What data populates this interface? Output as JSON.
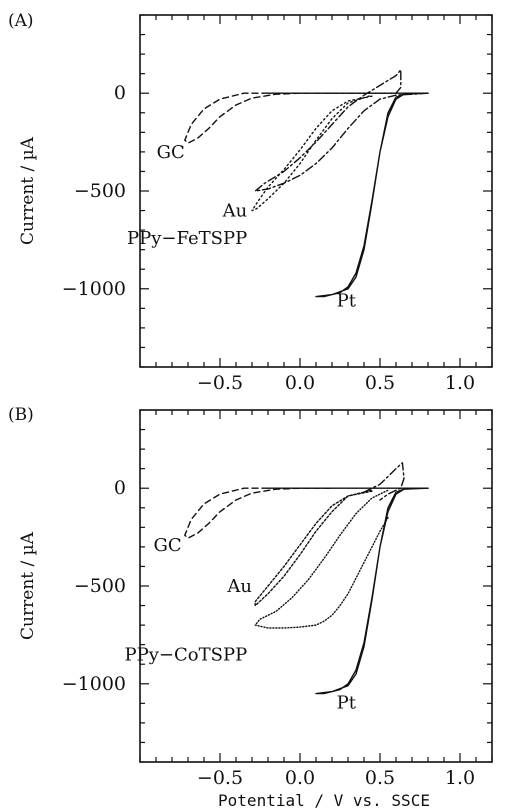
{
  "chart_data": [
    {
      "type": "line",
      "panel_label": "(A)",
      "title": "",
      "xlabel": "",
      "ylabel": "Current / µA",
      "xlim": [
        -1.0,
        1.2
      ],
      "ylim": [
        -1400,
        400
      ],
      "x_ticks": [
        -0.5,
        0.0,
        0.5,
        1.0
      ],
      "x_tick_labels": [
        "−0.5",
        "0.0",
        "0.5",
        "1.0"
      ],
      "y_ticks": [
        0,
        -500,
        -1000
      ],
      "y_tick_labels": [
        "0",
        "−500",
        "−1000"
      ],
      "grid": false,
      "series": [
        {
          "label": "GC",
          "dash": "6 4",
          "label_at": [
            -0.72,
            -300
          ],
          "x": [
            -0.2,
            -0.35,
            -0.5,
            -0.6,
            -0.68,
            -0.72,
            -0.7,
            -0.64,
            -0.57,
            -0.5,
            -0.4,
            -0.3,
            -0.15,
            0.0,
            0.2
          ],
          "y": [
            0,
            0,
            -30,
            -80,
            -160,
            -240,
            -255,
            -230,
            -180,
            -120,
            -60,
            -25,
            -5,
            0,
            0
          ]
        },
        {
          "label": "Au",
          "dash": "1.5 3",
          "label_at": [
            -0.33,
            -600
          ],
          "x": [
            0.45,
            0.3,
            0.2,
            0.1,
            0.0,
            -0.1,
            -0.2,
            -0.26,
            -0.3,
            -0.27,
            -0.2,
            -0.1,
            0.0,
            0.1,
            0.2,
            0.3,
            0.45
          ],
          "y": [
            -15,
            -40,
            -90,
            -180,
            -290,
            -390,
            -480,
            -550,
            -600,
            -590,
            -540,
            -460,
            -360,
            -240,
            -130,
            -50,
            -10
          ]
        },
        {
          "label": "PPy−FeTSPP",
          "dash": "8 3 2 3",
          "label_at": [
            -0.33,
            -740
          ],
          "x": [
            0.8,
            0.6,
            0.5,
            0.4,
            0.3,
            0.2,
            0.1,
            0.0,
            -0.1,
            -0.2,
            -0.28,
            -0.22,
            -0.1,
            0.0,
            0.1,
            0.2,
            0.3,
            0.4,
            0.5,
            0.6,
            0.63,
            0.63,
            0.6,
            0.5,
            0.4,
            0.3,
            0.2
          ],
          "y": [
            0,
            -10,
            -30,
            -90,
            -180,
            -280,
            -360,
            -420,
            -460,
            -490,
            -500,
            -460,
            -400,
            -330,
            -250,
            -160,
            -70,
            -10,
            40,
            90,
            120,
            30,
            0,
            0,
            0,
            0,
            0
          ]
        },
        {
          "label": "Pt",
          "dash": "",
          "label_at": [
            0.35,
            -1060
          ],
          "x": [
            0.8,
            0.65,
            0.6,
            0.55,
            0.5,
            0.45,
            0.4,
            0.35,
            0.3,
            0.25,
            0.2,
            0.15,
            0.1,
            0.2,
            0.3,
            0.35,
            0.4,
            0.45,
            0.5,
            0.55,
            0.6,
            0.65,
            0.8
          ],
          "y": [
            0,
            -5,
            -30,
            -120,
            -300,
            -550,
            -780,
            -920,
            -990,
            -1020,
            -1030,
            -1040,
            -1040,
            -1030,
            -1000,
            -940,
            -800,
            -560,
            -300,
            -100,
            -20,
            -5,
            0
          ]
        },
        {
          "label": "",
          "dash": "",
          "label_at": null,
          "x": [
            -0.2,
            0.0,
            0.2,
            0.4,
            0.6,
            0.8
          ],
          "y": [
            0,
            0,
            0,
            0,
            0,
            0
          ]
        }
      ]
    },
    {
      "type": "line",
      "panel_label": "(B)",
      "title": "",
      "xlabel": "Potential / V vs. SSCE",
      "ylabel": "Current / µA",
      "xlim": [
        -1.0,
        1.2
      ],
      "ylim": [
        -1400,
        400
      ],
      "x_ticks": [
        -0.5,
        0.0,
        0.5,
        1.0
      ],
      "x_tick_labels": [
        "−0.5",
        "0.0",
        "0.5",
        "1.0"
      ],
      "y_ticks": [
        0,
        -500,
        -1000
      ],
      "y_tick_labels": [
        "0",
        "−500",
        "−1000"
      ],
      "grid": false,
      "series": [
        {
          "label": "GC",
          "dash": "6 4",
          "label_at": [
            -0.74,
            -290
          ],
          "x": [
            -0.2,
            -0.35,
            -0.5,
            -0.6,
            -0.68,
            -0.72,
            -0.7,
            -0.64,
            -0.57,
            -0.5,
            -0.4,
            -0.3,
            -0.15,
            0.0,
            0.2
          ],
          "y": [
            0,
            0,
            -30,
            -80,
            -160,
            -240,
            -255,
            -230,
            -180,
            -120,
            -60,
            -25,
            -5,
            0,
            0
          ]
        },
        {
          "label": "Au",
          "dash": "2 2",
          "label_at": [
            -0.3,
            -500
          ],
          "x": [
            0.45,
            0.3,
            0.2,
            0.1,
            0.0,
            -0.1,
            -0.2,
            -0.28,
            -0.28,
            -0.2,
            -0.1,
            0.0,
            0.1,
            0.2,
            0.3,
            0.45
          ],
          "y": [
            -15,
            -40,
            -90,
            -180,
            -290,
            -400,
            -500,
            -580,
            -600,
            -540,
            -450,
            -340,
            -220,
            -120,
            -40,
            -10
          ]
        },
        {
          "label": "PPy−CoTSPP",
          "dash": "1 2",
          "label_at": [
            -0.33,
            -850
          ],
          "x": [
            0.55,
            0.5,
            0.45,
            0.4,
            0.35,
            0.3,
            0.25,
            0.2,
            0.15,
            0.1,
            0.0,
            -0.1,
            -0.2,
            -0.28,
            -0.25,
            -0.15,
            -0.05,
            0.05,
            0.15,
            0.25,
            0.35,
            0.45,
            0.55
          ],
          "y": [
            -150,
            -220,
            -300,
            -380,
            -460,
            -540,
            -600,
            -650,
            -680,
            -700,
            -710,
            -715,
            -715,
            -700,
            -670,
            -630,
            -560,
            -470,
            -360,
            -240,
            -130,
            -50,
            -10
          ]
        },
        {
          "label": "Pt",
          "dash": "",
          "label_at": [
            0.35,
            -1095
          ],
          "x": [
            0.8,
            0.65,
            0.6,
            0.55,
            0.5,
            0.45,
            0.4,
            0.35,
            0.3,
            0.25,
            0.2,
            0.15,
            0.1,
            0.2,
            0.3,
            0.35,
            0.4,
            0.45,
            0.5,
            0.55,
            0.6,
            0.65,
            0.8
          ],
          "y": [
            0,
            -5,
            -30,
            -120,
            -300,
            -560,
            -790,
            -930,
            -1000,
            -1030,
            -1040,
            -1050,
            -1050,
            -1040,
            -1010,
            -950,
            -810,
            -570,
            -300,
            -100,
            -20,
            -5,
            0
          ]
        },
        {
          "label": "",
          "dash": "8 3 2 3",
          "label_at": null,
          "x": [
            0.4,
            0.5,
            0.55,
            0.6,
            0.64,
            0.65,
            0.63,
            0.6,
            0.55,
            0.5
          ],
          "y": [
            -20,
            20,
            60,
            100,
            130,
            50,
            0,
            -10,
            -30,
            -60
          ]
        },
        {
          "label": "",
          "dash": "",
          "label_at": null,
          "x": [
            -0.2,
            0.0,
            0.2,
            0.4,
            0.6,
            0.8
          ],
          "y": [
            0,
            0,
            0,
            0,
            0,
            0
          ]
        }
      ]
    }
  ]
}
